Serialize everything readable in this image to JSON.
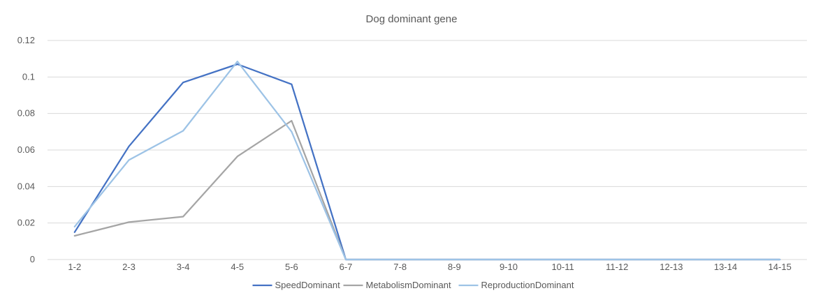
{
  "chart_data": {
    "type": "line",
    "title": "Dog dominant gene",
    "xlabel": "",
    "ylabel": "",
    "categories": [
      "1-2",
      "2-3",
      "3-4",
      "4-5",
      "5-6",
      "6-7",
      "7-8",
      "8-9",
      "9-10",
      "10-11",
      "11-12",
      "12-13",
      "13-14",
      "14-15"
    ],
    "ylim": [
      0,
      0.12
    ],
    "yticks": [
      "0",
      "0.02",
      "0.04",
      "0.06",
      "0.08",
      "0.1",
      "0.12"
    ],
    "ytick_values": [
      0,
      0.02,
      0.04,
      0.06,
      0.08,
      0.1,
      0.12
    ],
    "grid": true,
    "legend_position": "bottom",
    "series": [
      {
        "name": "SpeedDominant",
        "color": "#4472C4",
        "values": [
          0.015,
          0.062,
          0.097,
          0.107,
          0.096,
          0,
          0,
          0,
          0,
          0,
          0,
          0,
          0,
          0
        ]
      },
      {
        "name": "MetabolismDominant",
        "color": "#A5A5A5",
        "values": [
          0.013,
          0.0205,
          0.0235,
          0.0565,
          0.076,
          0,
          0,
          0,
          0,
          0,
          0,
          0,
          0,
          0
        ]
      },
      {
        "name": "ReproductionDominant",
        "color": "#9DC3E6",
        "values": [
          0.018,
          0.0545,
          0.0705,
          0.1085,
          0.07,
          0,
          0,
          0,
          0,
          0,
          0,
          0,
          0,
          0
        ]
      }
    ]
  }
}
